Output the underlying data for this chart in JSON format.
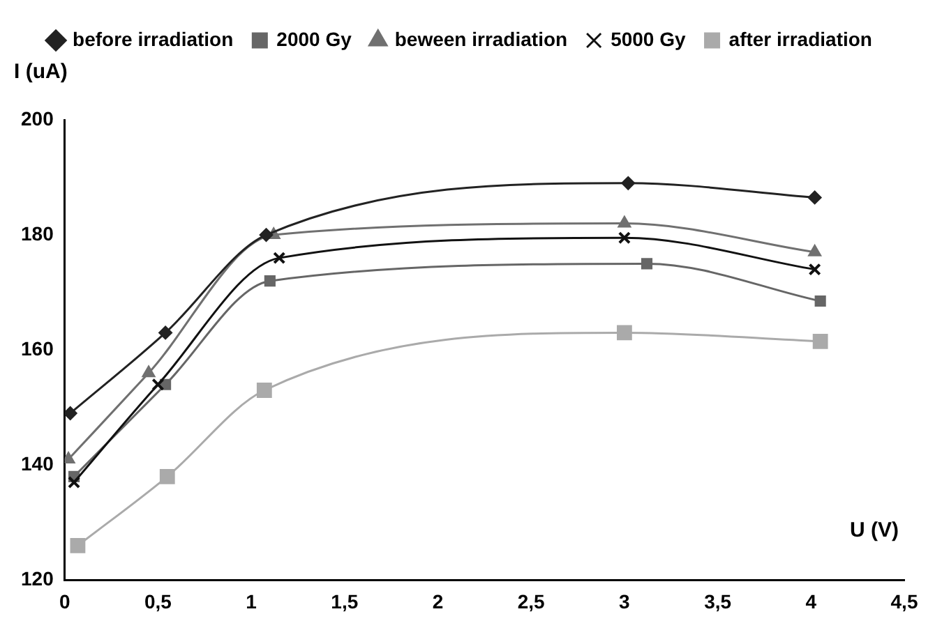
{
  "chart_data": {
    "type": "line",
    "xlabel": "U (V)",
    "ylabel": "I (uA)",
    "xlim": [
      0,
      4.5
    ],
    "ylim": [
      120,
      200
    ],
    "xticks": [
      0,
      {
        "value": 0.5,
        "label": "0,5"
      },
      1,
      {
        "value": 1.5,
        "label": "1,5"
      },
      2,
      {
        "value": 2.5,
        "label": "2,5"
      },
      3,
      {
        "value": 3.5,
        "label": "3,5"
      },
      4,
      {
        "value": 4.5,
        "label": "4,5"
      }
    ],
    "yticks": [
      120,
      140,
      160,
      180,
      200
    ],
    "grid": false,
    "legend": "top",
    "series": [
      {
        "name": "before irradiation",
        "color": "#222222",
        "marker": "diamond",
        "x": [
          0.03,
          0.54,
          1.08,
          3.02,
          4.02
        ],
        "values": [
          149,
          163,
          180,
          189,
          186.5
        ]
      },
      {
        "name": "2000 Gy",
        "color": "#666666",
        "marker": "square",
        "x": [
          0.05,
          0.54,
          1.1,
          3.12,
          4.05
        ],
        "values": [
          138,
          154,
          172,
          175,
          168.5
        ]
      },
      {
        "name": "beween irradiation",
        "color": "#707070",
        "marker": "triangle",
        "x": [
          0.02,
          0.45,
          1.12,
          3.0,
          4.02
        ],
        "values": [
          141,
          156,
          180,
          182,
          177
        ]
      },
      {
        "name": "5000 Gy",
        "color": "#111111",
        "marker": "cross",
        "x": [
          0.05,
          0.5,
          1.15,
          3.0,
          4.02
        ],
        "values": [
          137,
          154,
          176,
          179.5,
          174
        ]
      },
      {
        "name": "after irradiation",
        "color": "#aaaaaa",
        "marker": "square",
        "x": [
          0.07,
          0.55,
          1.07,
          3.0,
          4.05
        ],
        "values": [
          126,
          138,
          153,
          163,
          161.5
        ]
      }
    ]
  }
}
